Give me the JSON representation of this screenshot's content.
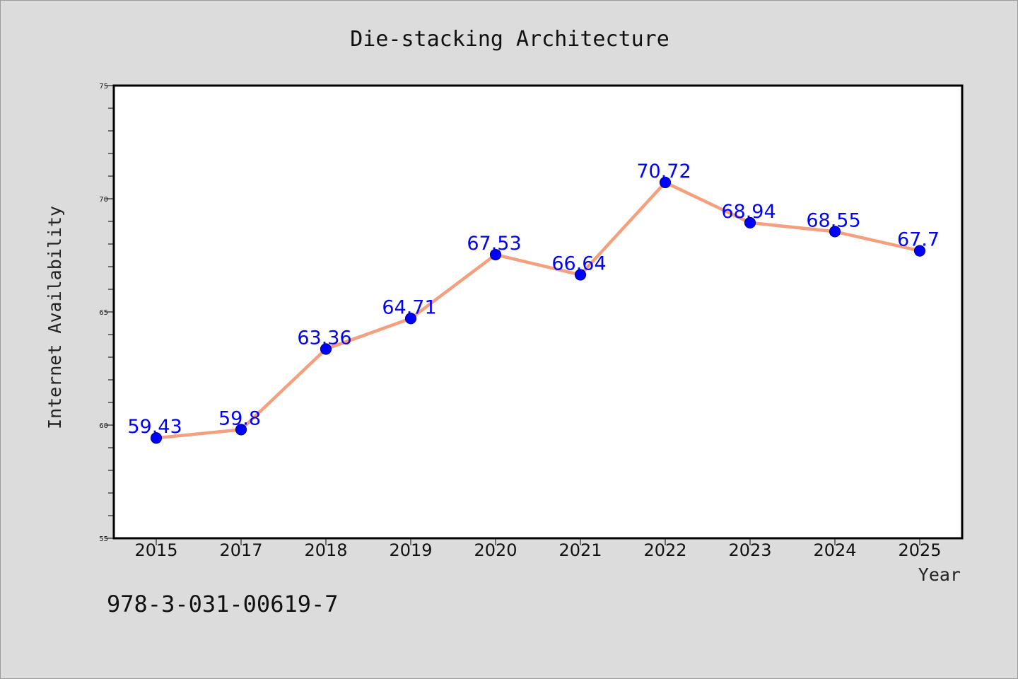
{
  "chart_data": {
    "type": "line",
    "title": "Die-stacking Architecture",
    "xlabel": "Year",
    "ylabel": "Internet Availability",
    "categories": [
      "2015",
      "2017",
      "2018",
      "2019",
      "2020",
      "2021",
      "2022",
      "2023",
      "2024",
      "2025"
    ],
    "series": [
      {
        "values": [
          59.43,
          59.8,
          63.36,
          64.71,
          67.53,
          66.64,
          70.72,
          68.94,
          68.55,
          67.7
        ],
        "labels": [
          "59.43",
          "59.8",
          "63.36",
          "64.71",
          "67.53",
          "66.64",
          "70.72",
          "68.94",
          "68.55",
          "67.7"
        ]
      }
    ],
    "ylim": [
      55,
      75
    ],
    "y_major_ticks": [
      55,
      60,
      65,
      70,
      75
    ],
    "y_minor_step": 1,
    "grid": false,
    "legend": "none",
    "colors": {
      "background": "#dcdcdc",
      "plot_background": "#ffffff",
      "line": "#f4a07e",
      "marker": "#0000ff",
      "marker_edge": "#00008b",
      "data_label": "#0000ff"
    }
  },
  "footnote": "978-3-031-00619-7"
}
